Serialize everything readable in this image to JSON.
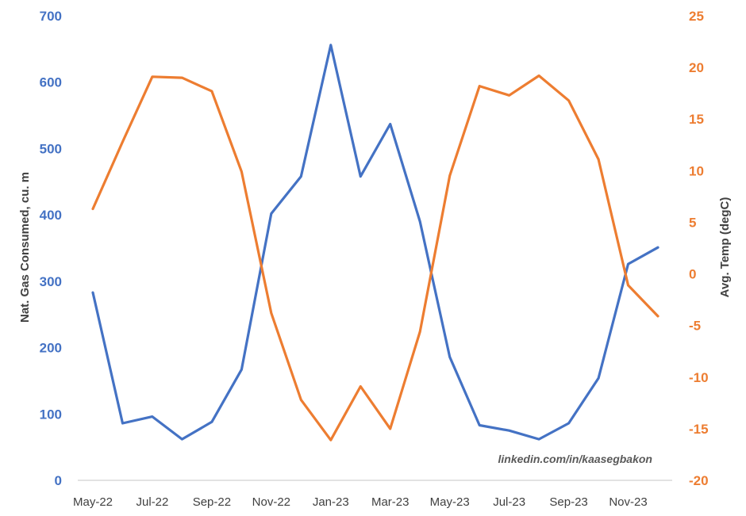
{
  "chart_data": {
    "type": "line",
    "title": "",
    "x": [
      "May-22",
      "Jun-22",
      "Jul-22",
      "Aug-22",
      "Sep-22",
      "Oct-22",
      "Nov-22",
      "Dec-22",
      "Jan-23",
      "Feb-23",
      "Mar-23",
      "Apr-23",
      "May-23",
      "Jun-23",
      "Jul-23",
      "Aug-23",
      "Sep-23",
      "Oct-23",
      "Nov-23",
      "Dec-23"
    ],
    "x_tick_labels": [
      "May-22",
      "Jul-22",
      "Sep-22",
      "Nov-22",
      "Jan-23",
      "Mar-23",
      "May-23",
      "Jul-23",
      "Sep-23",
      "Nov-23"
    ],
    "series": [
      {
        "axis": "left",
        "color": "#4472C4",
        "values": [
          283,
          86,
          96,
          62,
          88,
          167,
          402,
          458,
          656,
          458,
          537,
          390,
          186,
          83,
          75,
          62,
          86,
          154,
          326,
          351
        ]
      },
      {
        "axis": "right",
        "color": "#ED7D31",
        "values": [
          6.3,
          12.8,
          19.1,
          19.0,
          17.7,
          9.9,
          -3.8,
          -12.2,
          -16.1,
          -10.9,
          -15.0,
          -5.6,
          9.5,
          18.2,
          17.3,
          19.2,
          16.8,
          11.1,
          -1.1,
          -4.1
        ]
      }
    ],
    "ylabel": "Nat. Gas Consumed, cu. m",
    "ylim": [
      0,
      700
    ],
    "yticks": [
      0,
      100,
      200,
      300,
      400,
      500,
      600,
      700
    ],
    "y2label": "Avg. Temp (degC)",
    "y2lim": [
      -20,
      25
    ],
    "y2ticks": [
      -20,
      -15,
      -10,
      -5,
      0,
      5,
      10,
      15,
      20,
      25
    ],
    "grid": false,
    "legend": "none",
    "annotation": "linkedin.com/in/kaasegbakon",
    "colors": {
      "left_axis": "#4472C4",
      "right_axis": "#ED7D31",
      "axis_line": "#D9D9D9",
      "text": "#404040"
    }
  }
}
